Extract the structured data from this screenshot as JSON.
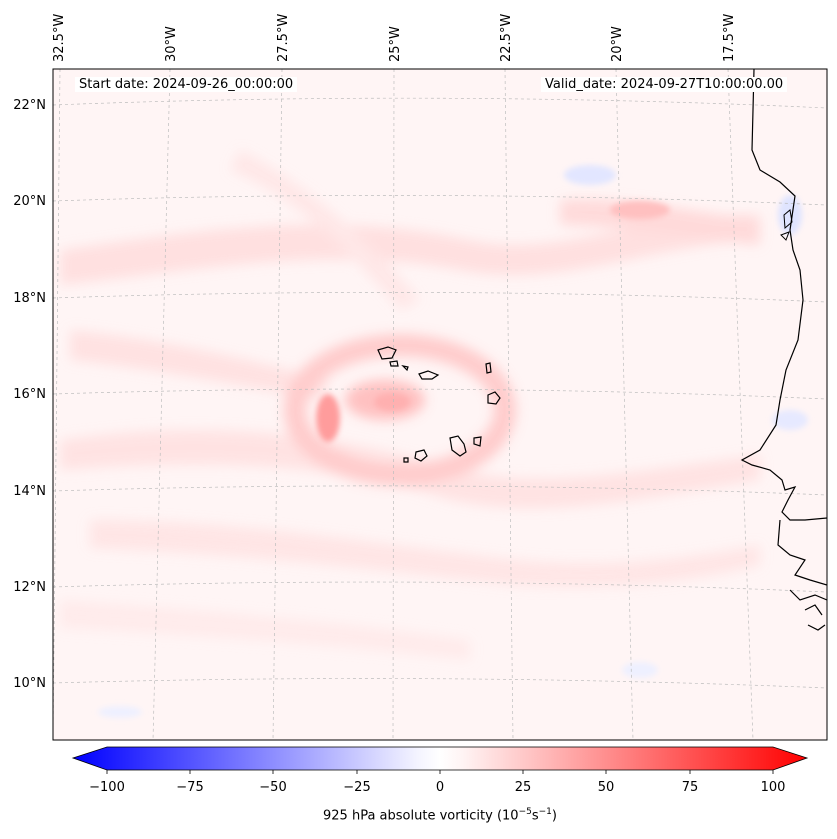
{
  "header": {
    "start_date": "Start date: 2024-09-26_00:00:00",
    "valid_date": "Valid_date: 2024-09-27T10:00:00.00"
  },
  "map": {
    "longitude_labels": [
      "32.5°W",
      "30°W",
      "27.5°W",
      "25°W",
      "22.5°W",
      "20°W",
      "17.5°W"
    ],
    "latitude_labels": [
      "22°N",
      "20°N",
      "18°N",
      "16°N",
      "14°N",
      "12°N",
      "10°N"
    ],
    "field": "925 hPa absolute vorticity",
    "features": [
      "Cape Verde islands",
      "West African coastline"
    ]
  },
  "colorbar": {
    "ticks": [
      "−100",
      "−75",
      "−50",
      "−25",
      "0",
      "25",
      "50",
      "75",
      "100"
    ],
    "label_main": "925 hPa absolute vorticity (10",
    "label_exp1": "−5",
    "label_mid": "s",
    "label_exp2": "−1",
    "label_end": ")",
    "min": -100,
    "max": 100,
    "colors": {
      "negative": "#0000ff",
      "zero": "#ffffff",
      "positive": "#ff0000"
    }
  }
}
